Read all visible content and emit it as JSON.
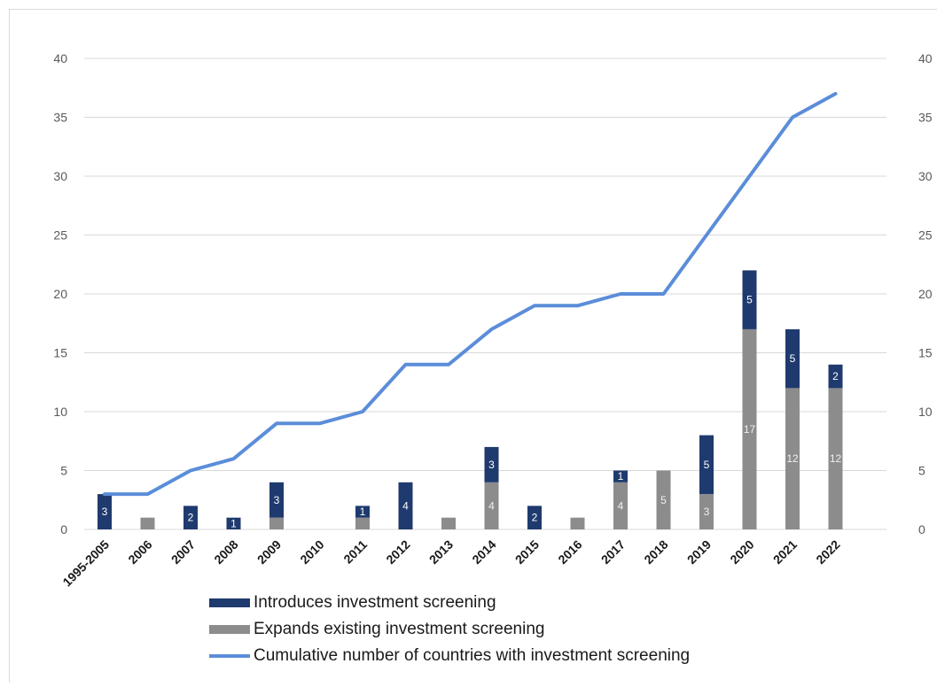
{
  "chart_data": {
    "type": "bar",
    "stacked": true,
    "categories": [
      "1995-2005",
      "2006",
      "2007",
      "2008",
      "2009",
      "2010",
      "2011",
      "2012",
      "2013",
      "2014",
      "2015",
      "2016",
      "2017",
      "2018",
      "2019",
      "2020",
      "2021",
      "2022"
    ],
    "series": [
      {
        "name": "Expands existing investment screening",
        "kind": "bar",
        "color": "#8c8c8c",
        "values": [
          0,
          1,
          0,
          0,
          1,
          0,
          1,
          0,
          1,
          4,
          0,
          1,
          4,
          5,
          3,
          17,
          12,
          12
        ],
        "labels": [
          "",
          "",
          "",
          "",
          "",
          "",
          "",
          "",
          "",
          "4",
          "",
          "",
          "4",
          "5",
          "3",
          "17",
          "12",
          "12"
        ]
      },
      {
        "name": "Introduces investment screening",
        "kind": "bar",
        "color": "#1f3a6e",
        "values": [
          3,
          0,
          2,
          1,
          3,
          0,
          1,
          4,
          0,
          3,
          2,
          0,
          1,
          0,
          5,
          5,
          5,
          2
        ],
        "labels": [
          "3",
          "",
          "2",
          "1",
          "3",
          "",
          "1",
          "4",
          "",
          "3",
          "2",
          "",
          "1",
          "",
          "5",
          "5",
          "5",
          "2"
        ]
      },
      {
        "name": "Cumulative number of countries with investment screening",
        "kind": "line",
        "color": "#5b8dd9",
        "values": [
          3,
          3,
          5,
          6,
          9,
          9,
          10,
          14,
          14,
          17,
          19,
          19,
          20,
          20,
          25,
          30,
          35,
          37
        ]
      }
    ],
    "ylim": [
      0,
      40
    ],
    "yticks": [
      "0",
      "5",
      "10",
      "15",
      "20",
      "25",
      "30",
      "35",
      "40"
    ],
    "y2ticks": [
      "0",
      "5",
      "10",
      "15",
      "20",
      "25",
      "30",
      "35",
      "40"
    ],
    "grid": true,
    "legend_position": "bottom"
  }
}
